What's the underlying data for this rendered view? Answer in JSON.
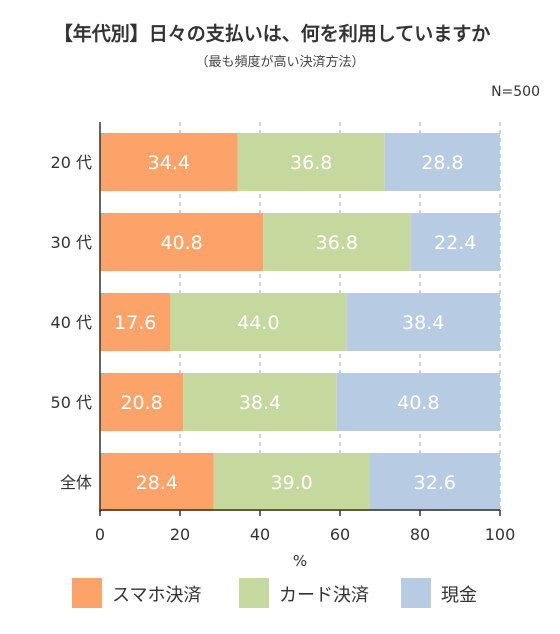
{
  "chart_data": {
    "type": "bar",
    "orientation": "horizontal",
    "stacked": true,
    "title": "【年代別】日々の支払いは、何を利用していますか",
    "subtitle": "（最も頻度が高い決済方法）",
    "note": "N=500",
    "categories": [
      "20 代",
      "30 代",
      "40 代",
      "50 代",
      "全体"
    ],
    "series": [
      {
        "name": "スマホ決済",
        "color": "#FBA369",
        "values": [
          34.4,
          40.8,
          17.6,
          20.8,
          28.4
        ]
      },
      {
        "name": "カード決済",
        "color": "#C5D89E",
        "values": [
          36.8,
          36.8,
          44.0,
          38.4,
          39.0
        ]
      },
      {
        "name": "現金",
        "color": "#B7CCE2",
        "values": [
          28.8,
          22.4,
          38.4,
          40.8,
          32.6
        ]
      }
    ],
    "value_labels": [
      [
        "34.4",
        "40.8",
        "17.6",
        "20.8",
        "28.4"
      ],
      [
        "36.8",
        "36.8",
        "44.0",
        "38.4",
        "39.0"
      ],
      [
        "28.8",
        "22.4",
        "38.4",
        "40.8",
        "32.6"
      ]
    ],
    "xlabel": "%",
    "xlim": [
      0,
      100
    ],
    "xticks": [
      0,
      20,
      40,
      60,
      80,
      100
    ],
    "xtick_labels": [
      "0",
      "20",
      "40",
      "60",
      "80",
      "100"
    ],
    "grid": "vertical dashed",
    "legend_position": "bottom"
  }
}
